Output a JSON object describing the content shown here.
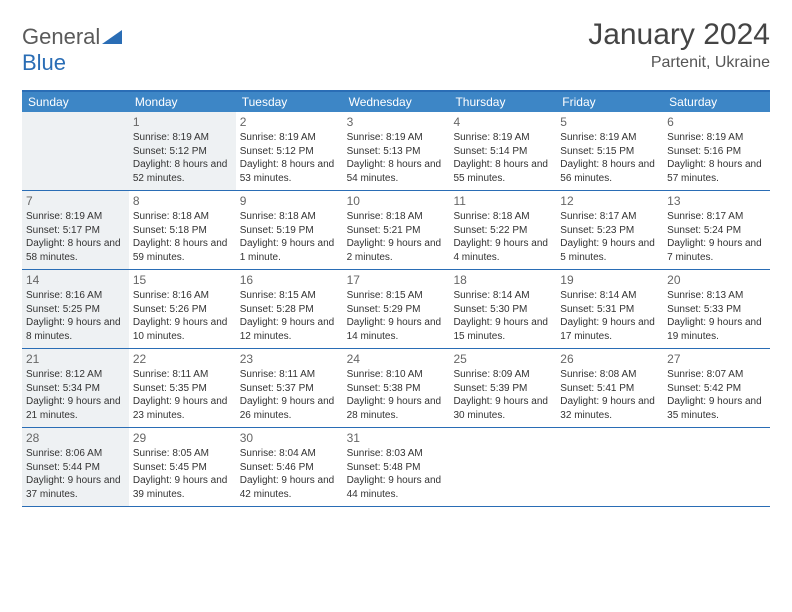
{
  "logo": {
    "text1": "General",
    "text2": "Blue"
  },
  "title": "January 2024",
  "location": "Partenit, Ukraine",
  "colors": {
    "header_bg": "#3d86c6",
    "border": "#2a6db5",
    "shade": "#eef1f3",
    "text": "#333333"
  },
  "weekdays": [
    "Sunday",
    "Monday",
    "Tuesday",
    "Wednesday",
    "Thursday",
    "Friday",
    "Saturday"
  ],
  "weeks": [
    [
      {
        "n": "",
        "lines": [],
        "shade": true
      },
      {
        "n": "1",
        "lines": [
          "Sunrise: 8:19 AM",
          "Sunset: 5:12 PM",
          "Daylight: 8 hours and 52 minutes."
        ],
        "shade": true
      },
      {
        "n": "2",
        "lines": [
          "Sunrise: 8:19 AM",
          "Sunset: 5:12 PM",
          "Daylight: 8 hours and 53 minutes."
        ],
        "shade": false
      },
      {
        "n": "3",
        "lines": [
          "Sunrise: 8:19 AM",
          "Sunset: 5:13 PM",
          "Daylight: 8 hours and 54 minutes."
        ],
        "shade": false
      },
      {
        "n": "4",
        "lines": [
          "Sunrise: 8:19 AM",
          "Sunset: 5:14 PM",
          "Daylight: 8 hours and 55 minutes."
        ],
        "shade": false
      },
      {
        "n": "5",
        "lines": [
          "Sunrise: 8:19 AM",
          "Sunset: 5:15 PM",
          "Daylight: 8 hours and 56 minutes."
        ],
        "shade": false
      },
      {
        "n": "6",
        "lines": [
          "Sunrise: 8:19 AM",
          "Sunset: 5:16 PM",
          "Daylight: 8 hours and 57 minutes."
        ],
        "shade": false
      }
    ],
    [
      {
        "n": "7",
        "lines": [
          "Sunrise: 8:19 AM",
          "Sunset: 5:17 PM",
          "Daylight: 8 hours and 58 minutes."
        ],
        "shade": true
      },
      {
        "n": "8",
        "lines": [
          "Sunrise: 8:18 AM",
          "Sunset: 5:18 PM",
          "Daylight: 8 hours and 59 minutes."
        ],
        "shade": false
      },
      {
        "n": "9",
        "lines": [
          "Sunrise: 8:18 AM",
          "Sunset: 5:19 PM",
          "Daylight: 9 hours and 1 minute."
        ],
        "shade": false
      },
      {
        "n": "10",
        "lines": [
          "Sunrise: 8:18 AM",
          "Sunset: 5:21 PM",
          "Daylight: 9 hours and 2 minutes."
        ],
        "shade": false
      },
      {
        "n": "11",
        "lines": [
          "Sunrise: 8:18 AM",
          "Sunset: 5:22 PM",
          "Daylight: 9 hours and 4 minutes."
        ],
        "shade": false
      },
      {
        "n": "12",
        "lines": [
          "Sunrise: 8:17 AM",
          "Sunset: 5:23 PM",
          "Daylight: 9 hours and 5 minutes."
        ],
        "shade": false
      },
      {
        "n": "13",
        "lines": [
          "Sunrise: 8:17 AM",
          "Sunset: 5:24 PM",
          "Daylight: 9 hours and 7 minutes."
        ],
        "shade": false
      }
    ],
    [
      {
        "n": "14",
        "lines": [
          "Sunrise: 8:16 AM",
          "Sunset: 5:25 PM",
          "Daylight: 9 hours and 8 minutes."
        ],
        "shade": true
      },
      {
        "n": "15",
        "lines": [
          "Sunrise: 8:16 AM",
          "Sunset: 5:26 PM",
          "Daylight: 9 hours and 10 minutes."
        ],
        "shade": false
      },
      {
        "n": "16",
        "lines": [
          "Sunrise: 8:15 AM",
          "Sunset: 5:28 PM",
          "Daylight: 9 hours and 12 minutes."
        ],
        "shade": false
      },
      {
        "n": "17",
        "lines": [
          "Sunrise: 8:15 AM",
          "Sunset: 5:29 PM",
          "Daylight: 9 hours and 14 minutes."
        ],
        "shade": false
      },
      {
        "n": "18",
        "lines": [
          "Sunrise: 8:14 AM",
          "Sunset: 5:30 PM",
          "Daylight: 9 hours and 15 minutes."
        ],
        "shade": false
      },
      {
        "n": "19",
        "lines": [
          "Sunrise: 8:14 AM",
          "Sunset: 5:31 PM",
          "Daylight: 9 hours and 17 minutes."
        ],
        "shade": false
      },
      {
        "n": "20",
        "lines": [
          "Sunrise: 8:13 AM",
          "Sunset: 5:33 PM",
          "Daylight: 9 hours and 19 minutes."
        ],
        "shade": false
      }
    ],
    [
      {
        "n": "21",
        "lines": [
          "Sunrise: 8:12 AM",
          "Sunset: 5:34 PM",
          "Daylight: 9 hours and 21 minutes."
        ],
        "shade": true
      },
      {
        "n": "22",
        "lines": [
          "Sunrise: 8:11 AM",
          "Sunset: 5:35 PM",
          "Daylight: 9 hours and 23 minutes."
        ],
        "shade": false
      },
      {
        "n": "23",
        "lines": [
          "Sunrise: 8:11 AM",
          "Sunset: 5:37 PM",
          "Daylight: 9 hours and 26 minutes."
        ],
        "shade": false
      },
      {
        "n": "24",
        "lines": [
          "Sunrise: 8:10 AM",
          "Sunset: 5:38 PM",
          "Daylight: 9 hours and 28 minutes."
        ],
        "shade": false
      },
      {
        "n": "25",
        "lines": [
          "Sunrise: 8:09 AM",
          "Sunset: 5:39 PM",
          "Daylight: 9 hours and 30 minutes."
        ],
        "shade": false
      },
      {
        "n": "26",
        "lines": [
          "Sunrise: 8:08 AM",
          "Sunset: 5:41 PM",
          "Daylight: 9 hours and 32 minutes."
        ],
        "shade": false
      },
      {
        "n": "27",
        "lines": [
          "Sunrise: 8:07 AM",
          "Sunset: 5:42 PM",
          "Daylight: 9 hours and 35 minutes."
        ],
        "shade": false
      }
    ],
    [
      {
        "n": "28",
        "lines": [
          "Sunrise: 8:06 AM",
          "Sunset: 5:44 PM",
          "Daylight: 9 hours and 37 minutes."
        ],
        "shade": true
      },
      {
        "n": "29",
        "lines": [
          "Sunrise: 8:05 AM",
          "Sunset: 5:45 PM",
          "Daylight: 9 hours and 39 minutes."
        ],
        "shade": false
      },
      {
        "n": "30",
        "lines": [
          "Sunrise: 8:04 AM",
          "Sunset: 5:46 PM",
          "Daylight: 9 hours and 42 minutes."
        ],
        "shade": false
      },
      {
        "n": "31",
        "lines": [
          "Sunrise: 8:03 AM",
          "Sunset: 5:48 PM",
          "Daylight: 9 hours and 44 minutes."
        ],
        "shade": false
      },
      {
        "n": "",
        "lines": [],
        "shade": false
      },
      {
        "n": "",
        "lines": [],
        "shade": false
      },
      {
        "n": "",
        "lines": [],
        "shade": false
      }
    ]
  ]
}
